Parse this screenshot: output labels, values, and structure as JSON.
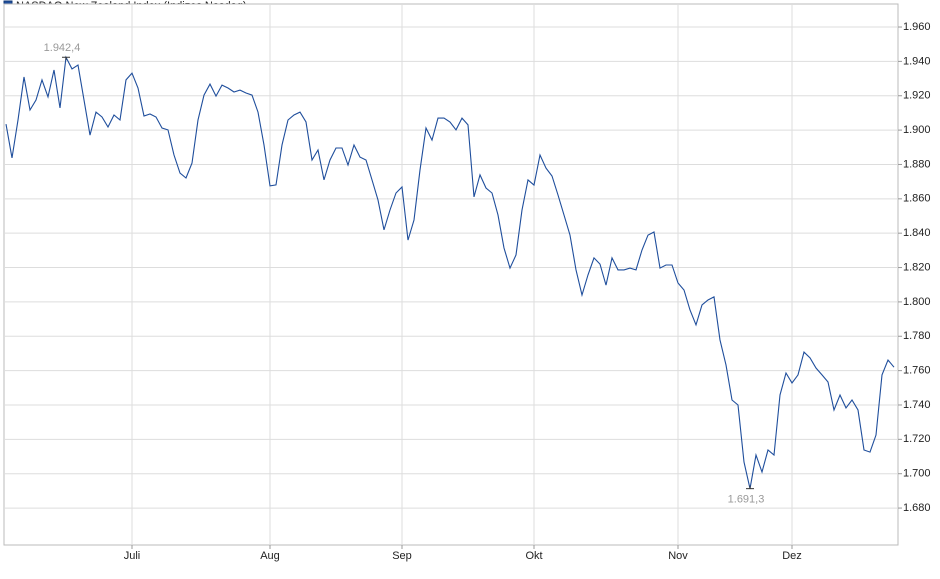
{
  "chart_data": {
    "type": "line",
    "legend_label": "NASDAQ New Zealand Index  (Indizes Nasdaq)",
    "categories": [
      null,
      null,
      null,
      null,
      null,
      null,
      null,
      null,
      null,
      null,
      null,
      null,
      null,
      null,
      null,
      null,
      null,
      null,
      null,
      null,
      null,
      "Juli",
      null,
      null,
      null,
      null,
      null,
      null,
      null,
      null,
      null,
      null,
      null,
      null,
      null,
      null,
      null,
      null,
      null,
      null,
      null,
      null,
      null,
      null,
      "Aug",
      null,
      null,
      null,
      null,
      null,
      null,
      null,
      null,
      null,
      null,
      null,
      null,
      null,
      null,
      null,
      null,
      null,
      null,
      null,
      null,
      null,
      "Sep",
      null,
      null,
      null,
      null,
      null,
      null,
      null,
      null,
      null,
      null,
      null,
      null,
      null,
      null,
      null,
      null,
      null,
      null,
      null,
      null,
      null,
      "Okt",
      null,
      null,
      null,
      null,
      null,
      null,
      null,
      null,
      null,
      null,
      null,
      null,
      null,
      null,
      null,
      null,
      null,
      null,
      null,
      null,
      null,
      null,
      null,
      "Nov",
      null,
      null,
      null,
      null,
      null,
      null,
      null,
      null,
      null,
      null,
      null,
      null,
      null,
      null,
      null,
      null,
      null,
      null,
      "Dez",
      null,
      null,
      null,
      null,
      null,
      null,
      null,
      null,
      null,
      null,
      null,
      null,
      null,
      null,
      null,
      null,
      null
    ],
    "series": [
      {
        "name": "NASDAQ New Zealand Index",
        "color": "#1f4e9c",
        "values": [
          1903.5,
          1883.8,
          1905.9,
          1930.9,
          1911.7,
          1917.5,
          1929.2,
          1919.3,
          1935,
          1912.9,
          1942.4,
          1935.6,
          1937.9,
          1917.5,
          1897.1,
          1910.5,
          1907.6,
          1901.8,
          1908.8,
          1905.9,
          1929.2,
          1933.2,
          1924.5,
          1908.2,
          1909.4,
          1907.6,
          1901.2,
          1900.1,
          1885.5,
          1875,
          1872.1,
          1880.8,
          1905.9,
          1920.4,
          1926.8,
          1919.8,
          1926.2,
          1924.5,
          1922.2,
          1923.3,
          1921.6,
          1920.4,
          1910.5,
          1891.3,
          1867.5,
          1868.1,
          1891.3,
          1905.9,
          1908.8,
          1910.5,
          1904.7,
          1882.6,
          1888.4,
          1871,
          1882.6,
          1889.6,
          1889.6,
          1879.7,
          1891.3,
          1884.3,
          1882.6,
          1871,
          1859.3,
          1841.9,
          1853.5,
          1863.4,
          1866.9,
          1836,
          1847.7,
          1876.8,
          1901.2,
          1894.2,
          1907,
          1907,
          1904.7,
          1900.1,
          1907,
          1903,
          1861.1,
          1873.9,
          1866.3,
          1863.4,
          1850.6,
          1831.4,
          1819.7,
          1827.3,
          1853.5,
          1871,
          1868,
          1885.5,
          1877.9,
          1873.3,
          1862.2,
          1850.6,
          1838.9,
          1818.6,
          1804,
          1815.7,
          1825.6,
          1822,
          1809.8,
          1825.6,
          1818.6,
          1818.6,
          1819.7,
          1818.6,
          1830.2,
          1838.9,
          1840.7,
          1819.7,
          1821.5,
          1821.5,
          1811,
          1806.9,
          1795.3,
          1786.6,
          1798.2,
          1801.1,
          1802.9,
          1777.8,
          1763.3,
          1742.9,
          1740,
          1706.8,
          1691.3,
          1710.9,
          1701,
          1713.8,
          1710.9,
          1745.8,
          1758.6,
          1752.8,
          1757.5,
          1770.8,
          1767.4,
          1761.5,
          1757.5,
          1753.4,
          1737.1,
          1745.8,
          1738.3,
          1742.9,
          1737.1,
          1713.8,
          1712.6,
          1722.5,
          1757.5,
          1766.2,
          1762
        ],
        "value_labels": [
          null,
          null,
          null,
          null,
          null,
          null,
          null,
          null,
          null,
          null,
          "1.942,4",
          null,
          null,
          null,
          null,
          null,
          null,
          null,
          null,
          null,
          null,
          null,
          null,
          null,
          null,
          null,
          null,
          null,
          null,
          null,
          null,
          null,
          null,
          null,
          null,
          null,
          null,
          null,
          null,
          null,
          null,
          null,
          null,
          null,
          null,
          null,
          null,
          null,
          null,
          null,
          null,
          null,
          null,
          null,
          null,
          null,
          null,
          null,
          null,
          null,
          null,
          null,
          null,
          null,
          null,
          null,
          null,
          null,
          null,
          null,
          null,
          null,
          null,
          null,
          null,
          null,
          null,
          null,
          null,
          null,
          null,
          null,
          null,
          null,
          null,
          null,
          null,
          null,
          null,
          null,
          null,
          null,
          null,
          null,
          null,
          null,
          null,
          null,
          null,
          null,
          null,
          null,
          null,
          null,
          null,
          null,
          null,
          null,
          null,
          null,
          null,
          null,
          null,
          null,
          null,
          null,
          null,
          null,
          null,
          null,
          null,
          null,
          null,
          null,
          "1.691,3",
          null,
          null,
          null,
          null,
          null,
          null,
          null,
          null,
          null,
          null,
          null,
          null,
          null,
          null,
          null,
          null,
          null,
          null,
          null,
          null,
          null,
          null,
          null,
          null
        ]
      }
    ],
    "ylim": [
      1658.5,
      1973.4
    ],
    "yticks": [
      {
        "value": 1680,
        "label": "1.680"
      },
      {
        "value": 1700,
        "label": "1.700"
      },
      {
        "value": 1720,
        "label": "1.720"
      },
      {
        "value": 1740,
        "label": "1.740"
      },
      {
        "value": 1760,
        "label": "1.760"
      },
      {
        "value": 1780,
        "label": "1.780"
      },
      {
        "value": 1800,
        "label": "1.800"
      },
      {
        "value": 1820,
        "label": "1.820"
      },
      {
        "value": 1840,
        "label": "1.840"
      },
      {
        "value": 1860,
        "label": "1.860"
      },
      {
        "value": 1880,
        "label": "1.880"
      },
      {
        "value": 1900,
        "label": "1.900"
      },
      {
        "value": 1920,
        "label": "1.920"
      },
      {
        "value": 1940,
        "label": "1.940"
      },
      {
        "value": 1960,
        "label": "1.960"
      }
    ],
    "grid": true
  }
}
